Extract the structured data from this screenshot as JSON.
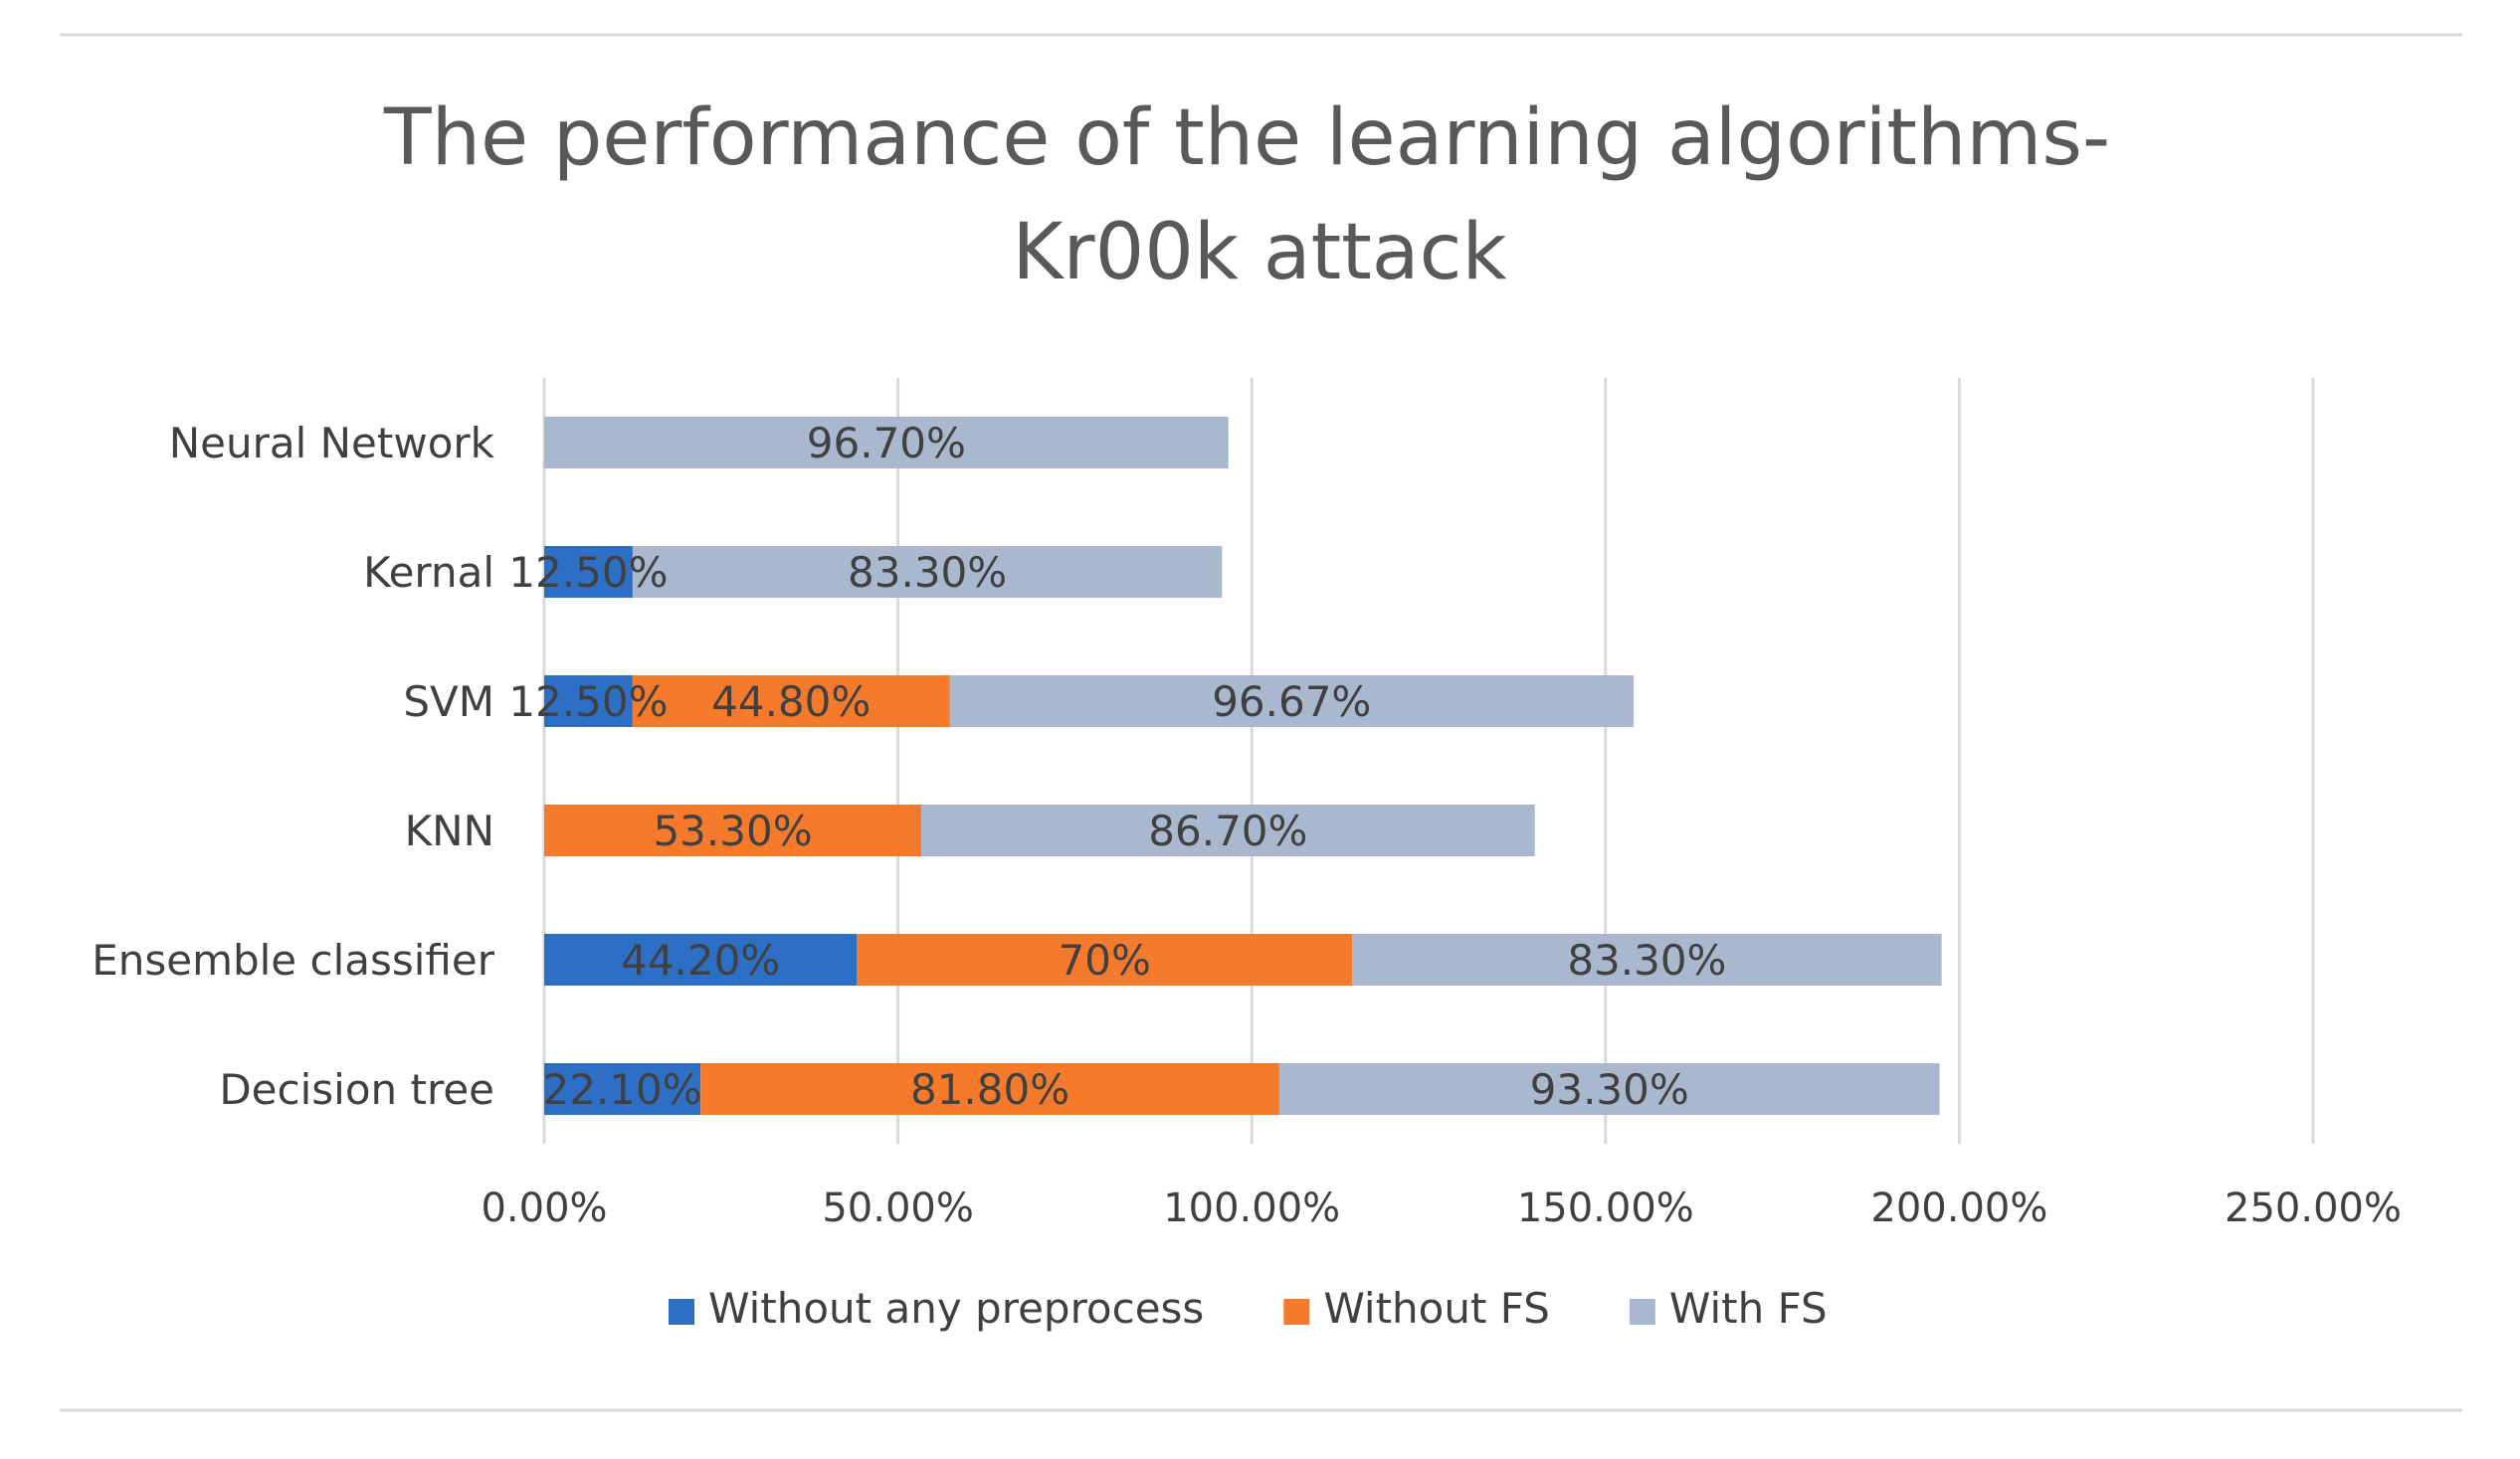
{
  "chart_data": {
    "type": "bar",
    "orientation": "horizontal",
    "stacked": true,
    "title": "The performance of the learning algorithms- Kr00k attack",
    "title_lines": [
      "The performance of the learning algorithms-",
      "Kr00k attack"
    ],
    "categories": [
      "Neural Network",
      "Kernal",
      "SVM",
      "KNN",
      "Ensemble classifier",
      "Decision tree"
    ],
    "series": [
      {
        "name": "Without any preprocess",
        "color": "#2E6FC6",
        "values": [
          null,
          12.5,
          12.5,
          null,
          44.2,
          22.1
        ],
        "labels": [
          "",
          "12.50%",
          "12.50%",
          "",
          "44.20%",
          "22.10%"
        ]
      },
      {
        "name": "Without FS",
        "color": "#F57A2C",
        "values": [
          null,
          null,
          44.8,
          53.3,
          70,
          81.8
        ],
        "labels": [
          "",
          "",
          "44.80%",
          "53.30%",
          "70%",
          "81.80%"
        ]
      },
      {
        "name": "With FS",
        "color": "#A9B8CF",
        "values": [
          96.7,
          83.3,
          96.67,
          86.7,
          83.3,
          93.3
        ],
        "labels": [
          "96.70%",
          "83.30%",
          "96.67%",
          "86.70%",
          "83.30%",
          "93.30%"
        ]
      }
    ],
    "xlim": [
      0,
      250
    ],
    "xticks": [
      0,
      50,
      100,
      150,
      200,
      250
    ],
    "xtick_labels": [
      "0.00%",
      "50.00%",
      "100.00%",
      "150.00%",
      "200.00%",
      "250.00%"
    ],
    "xlabel": "",
    "ylabel": "",
    "grid": true,
    "legend_position": "bottom"
  }
}
